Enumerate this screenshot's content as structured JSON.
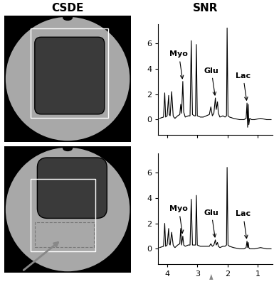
{
  "headers": {
    "left": "CSDE",
    "right": "SNR"
  },
  "chart_data": [
    {
      "type": "line",
      "color": "#000000",
      "tick_labels": "y",
      "xlim": [
        4.3,
        0.5
      ],
      "xticks": [
        4,
        3,
        2,
        1
      ],
      "ylim": [
        -1.2,
        7.5
      ],
      "yticks": [
        0,
        2,
        4,
        6
      ],
      "x": [
        4.25,
        4.12,
        4.08,
        4.05,
        4.0,
        3.95,
        3.93,
        3.9,
        3.85,
        3.8,
        3.78,
        3.74,
        3.65,
        3.58,
        3.55,
        3.52,
        3.48,
        3.45,
        3.4,
        3.3,
        3.24,
        3.2,
        3.16,
        3.1,
        3.06,
        3.03,
        3.0,
        2.9,
        2.8,
        2.7,
        2.6,
        2.55,
        2.5,
        2.45,
        2.4,
        2.37,
        2.33,
        2.3,
        2.25,
        2.15,
        2.08,
        2.03,
        2.01,
        1.98,
        1.93,
        1.8,
        1.6,
        1.45,
        1.38,
        1.35,
        1.33,
        1.31,
        1.29,
        1.26,
        1.2,
        1.1,
        0.9,
        0.7,
        0.55
      ],
      "values": [
        0.1,
        0.2,
        2.1,
        0.2,
        0.3,
        1.9,
        0.4,
        0.3,
        2.2,
        0.3,
        0.2,
        0.1,
        0.3,
        0.4,
        1.2,
        0.5,
        3.0,
        0.6,
        0.2,
        0.3,
        0.3,
        6.2,
        0.4,
        0.3,
        0.3,
        5.9,
        0.3,
        0.2,
        0.2,
        0.3,
        0.4,
        1.0,
        0.3,
        0.5,
        1.7,
        0.8,
        1.4,
        0.5,
        0.2,
        0.3,
        0.2,
        0.3,
        7.2,
        0.3,
        0.2,
        0.1,
        0.0,
        0.0,
        0.1,
        1.3,
        -0.6,
        1.2,
        -0.4,
        0.1,
        0.0,
        0.0,
        0.1,
        0.0,
        0.0
      ],
      "annotations": [
        {
          "text": "Myo",
          "x": 3.48,
          "y": 3.0
        },
        {
          "text": "Glu",
          "x": 2.4,
          "y": 1.7
        },
        {
          "text": "Lac",
          "x": 1.35,
          "y": 1.3
        }
      ]
    },
    {
      "type": "line",
      "color": "#000000",
      "xlim": [
        4.3,
        0.5
      ],
      "xticks": [
        4,
        3,
        2,
        1
      ],
      "ylim": [
        -1.2,
        7.5
      ],
      "yticks": [
        0,
        2,
        4,
        6
      ],
      "x": [
        4.25,
        4.12,
        4.08,
        4.05,
        4.0,
        3.95,
        3.93,
        3.9,
        3.85,
        3.8,
        3.78,
        3.74,
        3.65,
        3.58,
        3.55,
        3.52,
        3.48,
        3.45,
        3.4,
        3.3,
        3.24,
        3.2,
        3.16,
        3.1,
        3.06,
        3.03,
        3.0,
        2.9,
        2.8,
        2.7,
        2.6,
        2.55,
        2.5,
        2.45,
        2.4,
        2.37,
        2.33,
        2.3,
        2.25,
        2.15,
        2.08,
        2.03,
        2.01,
        1.98,
        1.93,
        1.8,
        1.6,
        1.45,
        1.38,
        1.35,
        1.33,
        1.31,
        1.29,
        1.26,
        1.2,
        1.1,
        0.9,
        0.7,
        0.55
      ],
      "values": [
        0.1,
        0.2,
        2.0,
        0.2,
        0.3,
        1.6,
        0.4,
        0.3,
        1.3,
        0.3,
        0.2,
        0.1,
        0.3,
        0.4,
        1.6,
        0.3,
        1.0,
        0.3,
        0.2,
        0.3,
        0.3,
        3.9,
        0.3,
        0.3,
        0.3,
        4.2,
        0.3,
        0.2,
        0.2,
        0.2,
        0.2,
        0.4,
        0.2,
        0.3,
        0.7,
        0.3,
        0.5,
        0.2,
        0.1,
        0.2,
        0.2,
        0.3,
        6.4,
        0.3,
        0.2,
        0.1,
        0.0,
        0.0,
        0.1,
        0.6,
        0.1,
        0.5,
        0.1,
        0.0,
        0.0,
        0.0,
        0.1,
        0.0,
        0.0
      ],
      "annotations": [
        {
          "text": "Myo",
          "x": 3.48,
          "y": 1.0
        },
        {
          "text": "Glu",
          "x": 2.4,
          "y": 0.7
        },
        {
          "text": "Lac",
          "x": 1.35,
          "y": 0.6
        }
      ]
    }
  ]
}
